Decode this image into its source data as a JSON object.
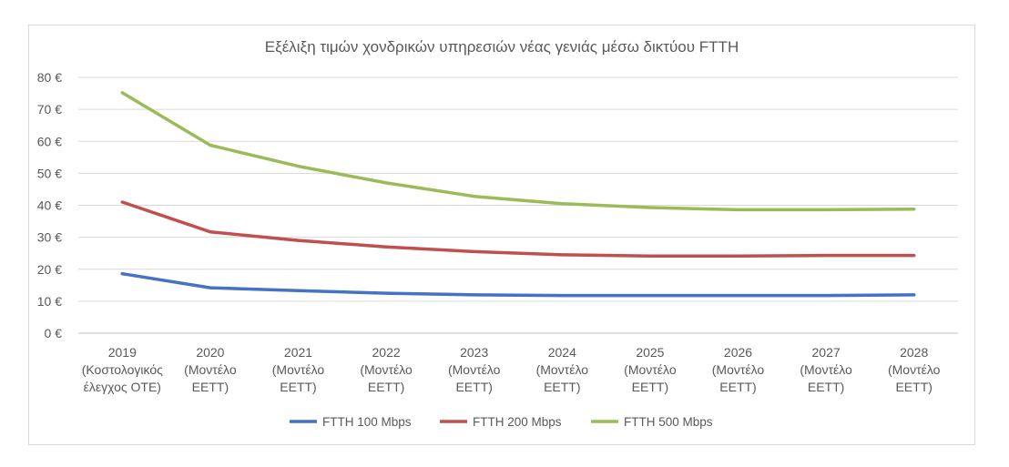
{
  "chart_data": {
    "type": "line",
    "title": "Εξέλιξη τιμών χονδρικών υπηρεσιών νέας γενιάς μέσω δικτύου FTTH",
    "categories": [
      [
        "2019",
        "(Κοστολογικός",
        "έλεγχος ΟΤΕ)"
      ],
      [
        "2020",
        "(Μοντέλο",
        "ΕΕΤΤ)"
      ],
      [
        "2021",
        "(Μοντέλο",
        "ΕΕΤΤ)"
      ],
      [
        "2022",
        "(Μοντέλο",
        "ΕΕΤΤ)"
      ],
      [
        "2023",
        "(Μοντέλο",
        "ΕΕΤΤ)"
      ],
      [
        "2024",
        "(Μοντέλο",
        "ΕΕΤΤ)"
      ],
      [
        "2025",
        "(Μοντέλο",
        "ΕΕΤΤ)"
      ],
      [
        "2026",
        "(Μοντέλο",
        "ΕΕΤΤ)"
      ],
      [
        "2027",
        "(Μοντέλο",
        "ΕΕΤΤ)"
      ],
      [
        "2028",
        "(Μοντέλο",
        "ΕΕΤΤ)"
      ]
    ],
    "ylim": [
      0,
      80
    ],
    "yticks": [
      0,
      10,
      20,
      30,
      40,
      50,
      60,
      70,
      80
    ],
    "ytick_labels": [
      "0 €",
      "10 €",
      "20 €",
      "30 €",
      "40 €",
      "50 €",
      "60 €",
      "70 €",
      "80 €"
    ],
    "grid": true,
    "legend_position": "bottom",
    "series": [
      {
        "name": "FTTH 100 Mbps",
        "color": "#4472c4",
        "values": [
          18.6,
          14.2,
          13.3,
          12.5,
          12.0,
          11.8,
          11.8,
          11.8,
          11.8,
          12.0
        ]
      },
      {
        "name": "FTTH 200 Mbps",
        "color": "#c0504d",
        "values": [
          41.0,
          31.7,
          29.0,
          27.0,
          25.5,
          24.5,
          24.1,
          24.1,
          24.3,
          24.3
        ]
      },
      {
        "name": "FTTH 500 Mbps",
        "color": "#9bbb59",
        "values": [
          75.2,
          58.8,
          52.2,
          47.0,
          42.8,
          40.5,
          39.3,
          38.6,
          38.6,
          38.8
        ]
      }
    ]
  }
}
